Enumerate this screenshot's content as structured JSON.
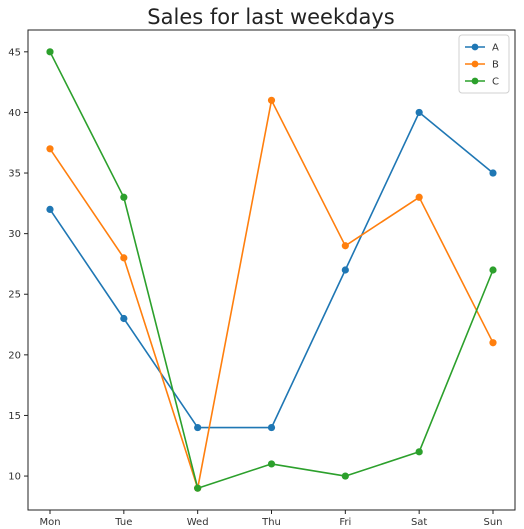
{
  "chart_data": {
    "type": "line",
    "title": "Sales for last weekdays",
    "xlabel": "",
    "ylabel": "",
    "categories": [
      "Mon",
      "Tue",
      "Wed",
      "Thu",
      "Fri",
      "Sat",
      "Sun"
    ],
    "yticks": [
      10,
      15,
      20,
      25,
      30,
      35,
      40,
      45
    ],
    "ylim": [
      7.2,
      46.8
    ],
    "grid": false,
    "legend_position": "top-right",
    "series": [
      {
        "name": "A",
        "color": "#1f77b4",
        "values": [
          32,
          23,
          14,
          14,
          27,
          40,
          35
        ]
      },
      {
        "name": "B",
        "color": "#ff7f0e",
        "values": [
          37,
          28,
          9,
          41,
          29,
          33,
          21
        ]
      },
      {
        "name": "C",
        "color": "#2ca02c",
        "values": [
          45,
          33,
          9,
          11,
          10,
          12,
          27
        ]
      }
    ]
  }
}
